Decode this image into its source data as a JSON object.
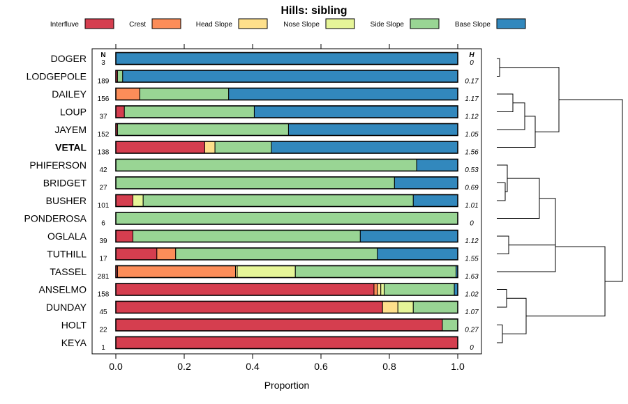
{
  "chart_data": {
    "type": "bar",
    "orientation": "horizontal",
    "stacked": true,
    "title": "Hills: sibling",
    "xlabel": "Proportion",
    "ylabel": "",
    "xlim": [
      0,
      1
    ],
    "x_ticks": [
      "0.0",
      "0.2",
      "0.4",
      "0.6",
      "0.8",
      "1.0"
    ],
    "legend_position": "top",
    "n_header": "N",
    "h_header": "H",
    "highlight": "VETAL",
    "categories": [
      "DOGER",
      "LODGEPOLE",
      "DAILEY",
      "LOUP",
      "JAYEM",
      "VETAL",
      "PHIFERSON",
      "BRIDGET",
      "BUSHER",
      "PONDEROSA",
      "OGLALA",
      "TUTHILL",
      "TASSEL",
      "ANSELMO",
      "DUNDAY",
      "HOLT",
      "KEYA"
    ],
    "n": [
      "3",
      "189",
      "156",
      "37",
      "152",
      "138",
      "42",
      "27",
      "101",
      "6",
      "39",
      "17",
      "281",
      "158",
      "45",
      "22",
      "1"
    ],
    "h": [
      "0",
      "0.17",
      "1.17",
      "1.12",
      "1.05",
      "1.56",
      "0.53",
      "0.69",
      "1.01",
      "0",
      "1.12",
      "1.55",
      "1.63",
      "1.02",
      "1.07",
      "0.27",
      "0"
    ],
    "series": [
      {
        "name": "Interfluve",
        "color": "#D53E4F",
        "values": [
          0,
          0.005,
          0,
          0.025,
          0.005,
          0.26,
          0,
          0,
          0.05,
          0,
          0.05,
          0.12,
          0.005,
          0.755,
          0.78,
          0.955,
          1.0
        ]
      },
      {
        "name": "Crest",
        "color": "#FC8D59",
        "values": [
          0,
          0,
          0.07,
          0,
          0,
          0,
          0,
          0,
          0,
          0,
          0,
          0.055,
          0.345,
          0.01,
          0,
          0,
          0
        ]
      },
      {
        "name": "Head Slope",
        "color": "#FEE08B",
        "values": [
          0,
          0,
          0,
          0,
          0,
          0.03,
          0,
          0,
          0,
          0,
          0,
          0,
          0.005,
          0.01,
          0.045,
          0,
          0
        ]
      },
      {
        "name": "Nose Slope",
        "color": "#E6F598",
        "values": [
          0,
          0,
          0,
          0,
          0,
          0,
          0,
          0,
          0.03,
          0,
          0,
          0,
          0.17,
          0.01,
          0.045,
          0,
          0
        ]
      },
      {
        "name": "Side Slope",
        "color": "#99D594",
        "values": [
          0,
          0.015,
          0.26,
          0.38,
          0.5,
          0.165,
          0.88,
          0.815,
          0.79,
          1.0,
          0.665,
          0.59,
          0.47,
          0.205,
          0.13,
          0.045,
          0
        ]
      },
      {
        "name": "Base Slope",
        "color": "#3288BD",
        "values": [
          1.0,
          0.98,
          0.67,
          0.595,
          0.495,
          0.545,
          0.12,
          0.185,
          0.13,
          0,
          0.285,
          0.235,
          0.005,
          0.01,
          0,
          0,
          0
        ]
      }
    ]
  }
}
